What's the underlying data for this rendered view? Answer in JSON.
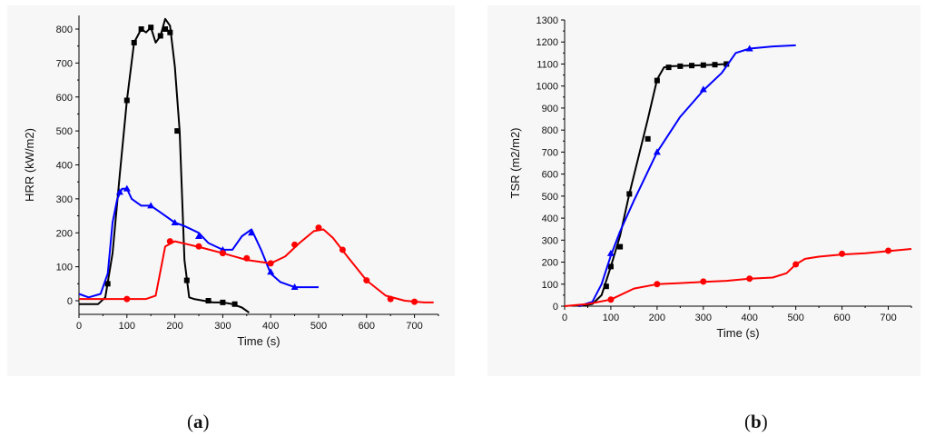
{
  "chart_data": [
    {
      "type": "line",
      "panel_label": "a",
      "xlabel": "Time (s)",
      "ylabel": "HRR (kW/m2)",
      "xlim": [
        0,
        750
      ],
      "ylim": [
        -40,
        840
      ],
      "xticks": [
        0,
        100,
        200,
        300,
        400,
        500,
        600,
        700
      ],
      "yticks": [
        0,
        100,
        200,
        300,
        400,
        500,
        600,
        700,
        800
      ],
      "grid": false,
      "series": [
        {
          "color": "#000000",
          "marker": "square",
          "x": [
            0,
            40,
            55,
            70,
            85,
            100,
            115,
            130,
            140,
            150,
            160,
            170,
            180,
            190,
            200,
            210,
            220,
            230,
            240,
            260,
            280,
            300,
            320,
            340,
            355
          ],
          "y": [
            -10,
            -10,
            10,
            140,
            370,
            590,
            760,
            800,
            790,
            805,
            760,
            780,
            830,
            810,
            690,
            500,
            120,
            10,
            5,
            0,
            -5,
            -5,
            -10,
            -20,
            -35
          ],
          "marker_x": [
            60,
            100,
            115,
            130,
            150,
            170,
            180,
            190,
            205,
            225,
            270,
            300,
            325
          ],
          "marker_y": [
            50,
            590,
            760,
            800,
            805,
            780,
            800,
            790,
            500,
            60,
            0,
            -5,
            -10
          ]
        },
        {
          "color": "#0000ff",
          "marker": "triangle",
          "x": [
            0,
            20,
            45,
            60,
            70,
            80,
            90,
            100,
            110,
            130,
            150,
            170,
            200,
            220,
            250,
            270,
            300,
            320,
            340,
            360,
            380,
            400,
            420,
            450,
            480,
            500
          ],
          "y": [
            20,
            10,
            20,
            80,
            230,
            300,
            330,
            330,
            300,
            280,
            280,
            260,
            230,
            220,
            200,
            170,
            150,
            150,
            190,
            210,
            150,
            80,
            55,
            40,
            40,
            40
          ],
          "marker_x": [
            85,
            100,
            150,
            200,
            250,
            300,
            360,
            400,
            450
          ],
          "marker_y": [
            320,
            330,
            280,
            230,
            190,
            150,
            200,
            85,
            40
          ]
        },
        {
          "color": "#ff0000",
          "marker": "circle",
          "x": [
            0,
            30,
            50,
            70,
            100,
            140,
            160,
            180,
            200,
            230,
            260,
            300,
            350,
            400,
            430,
            460,
            490,
            510,
            530,
            560,
            600,
            640,
            680,
            720,
            740
          ],
          "y": [
            5,
            5,
            5,
            5,
            5,
            5,
            15,
            160,
            175,
            165,
            155,
            140,
            120,
            110,
            130,
            170,
            205,
            210,
            185,
            130,
            60,
            15,
            0,
            -5,
            -5
          ],
          "marker_x": [
            100,
            190,
            250,
            300,
            350,
            400,
            450,
            500,
            550,
            600,
            650,
            700
          ],
          "marker_y": [
            5,
            175,
            160,
            140,
            125,
            110,
            165,
            215,
            150,
            60,
            5,
            -3
          ]
        }
      ]
    },
    {
      "type": "line",
      "panel_label": "b",
      "xlabel": "Time (s)",
      "ylabel": "TSR (m2/m2)",
      "xlim": [
        0,
        750
      ],
      "ylim": [
        0,
        1300
      ],
      "xticks": [
        0,
        100,
        200,
        300,
        400,
        500,
        600,
        700
      ],
      "yticks": [
        0,
        100,
        200,
        300,
        400,
        500,
        600,
        700,
        800,
        900,
        1000,
        1100,
        1200,
        1300
      ],
      "grid": false,
      "series": [
        {
          "color": "#000000",
          "marker": "square",
          "x": [
            30,
            60,
            80,
            100,
            120,
            140,
            160,
            180,
            200,
            215,
            230,
            260,
            300,
            350
          ],
          "y": [
            0,
            10,
            50,
            180,
            320,
            510,
            680,
            850,
            1030,
            1085,
            1090,
            1092,
            1095,
            1100
          ],
          "marker_x": [
            90,
            100,
            120,
            140,
            180,
            200,
            225,
            250,
            275,
            300,
            325,
            350
          ],
          "marker_y": [
            90,
            180,
            270,
            510,
            760,
            1025,
            1085,
            1090,
            1093,
            1095,
            1097,
            1100
          ],
          "polyline_note": ""
        },
        {
          "color": "#0000ff",
          "marker": "triangle",
          "x": [
            30,
            60,
            80,
            100,
            120,
            150,
            200,
            250,
            300,
            340,
            370,
            400,
            450,
            500
          ],
          "y": [
            0,
            20,
            100,
            230,
            340,
            480,
            700,
            860,
            980,
            1060,
            1150,
            1170,
            1180,
            1185
          ],
          "marker_x": [
            100,
            200,
            300,
            400
          ],
          "marker_y": [
            240,
            700,
            985,
            1170
          ]
        },
        {
          "color": "#ff0000",
          "marker": "circle",
          "x": [
            0,
            50,
            100,
            150,
            200,
            250,
            300,
            350,
            400,
            450,
            480,
            500,
            520,
            550,
            600,
            650,
            700,
            750
          ],
          "y": [
            0,
            10,
            30,
            80,
            100,
            105,
            110,
            115,
            125,
            130,
            150,
            190,
            215,
            225,
            235,
            240,
            250,
            260
          ],
          "marker_x": [
            100,
            200,
            300,
            400,
            500,
            600,
            700
          ],
          "marker_y": [
            30,
            100,
            112,
            125,
            190,
            238,
            252
          ]
        }
      ]
    }
  ]
}
